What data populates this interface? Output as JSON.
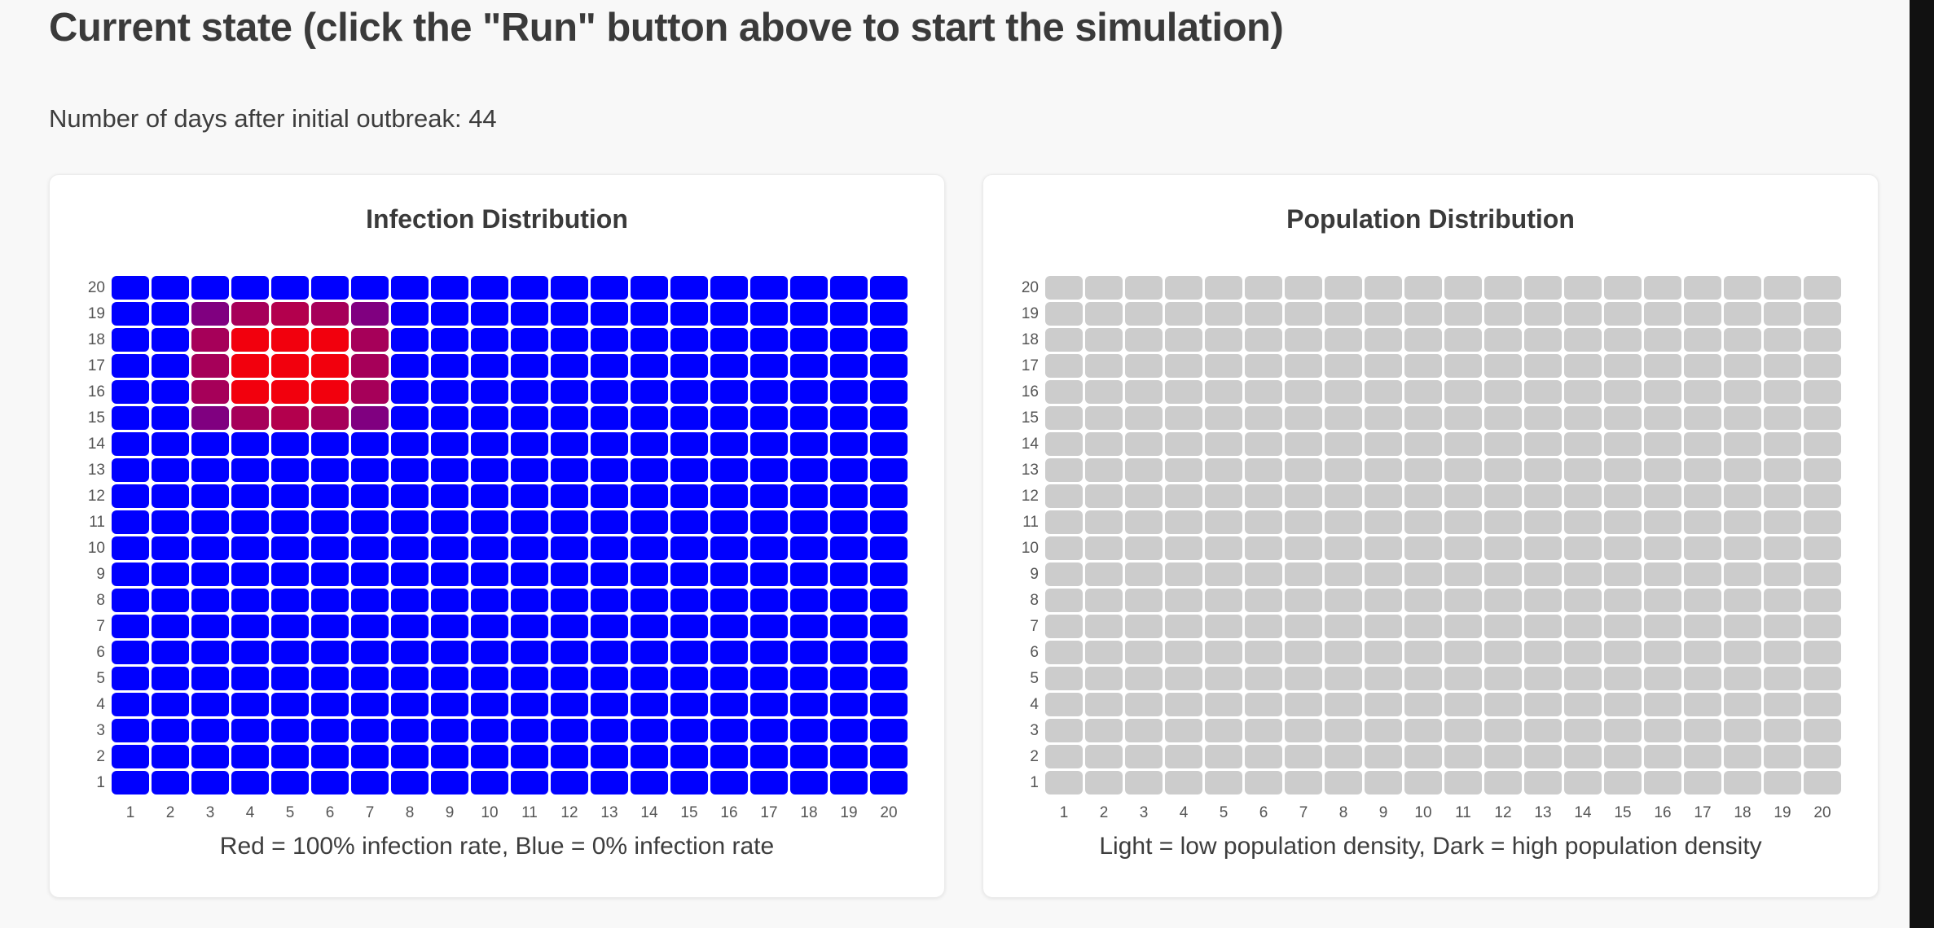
{
  "title": "Current state (click the \"Run\" button above to start the simulation)",
  "days_text": "Number of days after initial outbreak: 44",
  "chart_data": [
    {
      "type": "heatmap",
      "title": "Infection Distribution",
      "caption": "Red = 100% infection rate, Blue = 0% infection rate",
      "x": [
        1,
        2,
        3,
        4,
        5,
        6,
        7,
        8,
        9,
        10,
        11,
        12,
        13,
        14,
        15,
        16,
        17,
        18,
        19,
        20
      ],
      "y": [
        1,
        2,
        3,
        4,
        5,
        6,
        7,
        8,
        9,
        10,
        11,
        12,
        13,
        14,
        15,
        16,
        17,
        18,
        19,
        20
      ],
      "color_low": "#0000ff",
      "color_high": "#ff0000",
      "values": [
        {
          "x": 3,
          "y": 15,
          "value": 0.5
        },
        {
          "x": 4,
          "y": 15,
          "value": 0.65
        },
        {
          "x": 5,
          "y": 15,
          "value": 0.7
        },
        {
          "x": 6,
          "y": 15,
          "value": 0.65
        },
        {
          "x": 7,
          "y": 15,
          "value": 0.5
        },
        {
          "x": 3,
          "y": 16,
          "value": 0.65
        },
        {
          "x": 4,
          "y": 16,
          "value": 0.95
        },
        {
          "x": 5,
          "y": 16,
          "value": 0.95
        },
        {
          "x": 6,
          "y": 16,
          "value": 0.95
        },
        {
          "x": 7,
          "y": 16,
          "value": 0.65
        },
        {
          "x": 3,
          "y": 17,
          "value": 0.65
        },
        {
          "x": 4,
          "y": 17,
          "value": 0.95
        },
        {
          "x": 5,
          "y": 17,
          "value": 0.95
        },
        {
          "x": 6,
          "y": 17,
          "value": 0.95
        },
        {
          "x": 7,
          "y": 17,
          "value": 0.65
        },
        {
          "x": 3,
          "y": 18,
          "value": 0.65
        },
        {
          "x": 4,
          "y": 18,
          "value": 0.95
        },
        {
          "x": 5,
          "y": 18,
          "value": 0.95
        },
        {
          "x": 6,
          "y": 18,
          "value": 0.95
        },
        {
          "x": 7,
          "y": 18,
          "value": 0.65
        },
        {
          "x": 3,
          "y": 19,
          "value": 0.5
        },
        {
          "x": 4,
          "y": 19,
          "value": 0.65
        },
        {
          "x": 5,
          "y": 19,
          "value": 0.7
        },
        {
          "x": 6,
          "y": 19,
          "value": 0.65
        },
        {
          "x": 7,
          "y": 19,
          "value": 0.5
        }
      ],
      "default_value": 0
    },
    {
      "type": "heatmap",
      "title": "Population Distribution",
      "caption": "Light = low population density, Dark = high population density",
      "x": [
        1,
        2,
        3,
        4,
        5,
        6,
        7,
        8,
        9,
        10,
        11,
        12,
        13,
        14,
        15,
        16,
        17,
        18,
        19,
        20
      ],
      "y": [
        1,
        2,
        3,
        4,
        5,
        6,
        7,
        8,
        9,
        10,
        11,
        12,
        13,
        14,
        15,
        16,
        17,
        18,
        19,
        20
      ],
      "uniform_color": "#cccccc"
    }
  ]
}
